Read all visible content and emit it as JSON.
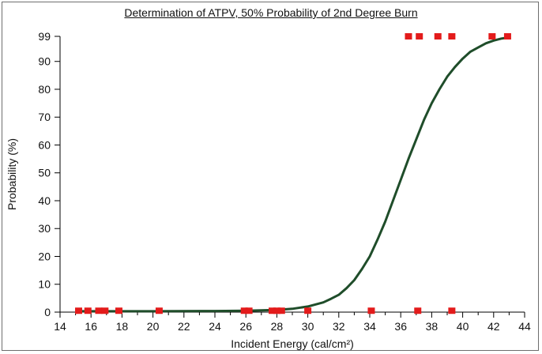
{
  "chart_data": {
    "type": "line",
    "title": "Determination of ATPV, 50% Probability of 2nd Degree Burn",
    "xlabel": "Incident Energy (cal/cm²)",
    "ylabel": "Probability (%)",
    "xlim": [
      14,
      44
    ],
    "ylim": [
      0,
      99
    ],
    "xticks": [
      "14",
      "16",
      "18",
      "20",
      "22",
      "24",
      "26",
      "28",
      "30",
      "32",
      "34",
      "36",
      "38",
      "40",
      "42",
      "44"
    ],
    "yticks": [
      "0",
      "10",
      "20",
      "30",
      "40",
      "50",
      "60",
      "70",
      "80",
      "90",
      "99"
    ],
    "grid": false,
    "colors": {
      "curve": "#1f4d2a",
      "points": "#e31b1b",
      "axis": "#000000"
    },
    "series": [
      {
        "type": "line",
        "x": [
          15.0,
          20.0,
          24.0,
          26.0,
          28.0,
          29.0,
          30.0,
          31.0,
          31.5,
          32.0,
          32.5,
          33.0,
          33.5,
          34.0,
          34.5,
          35.0,
          35.5,
          36.0,
          36.5,
          37.0,
          37.5,
          38.0,
          38.5,
          39.0,
          39.5,
          40.0,
          40.5,
          41.0,
          41.5,
          42.0,
          42.5,
          43.0
        ],
        "y": [
          0.3,
          0.3,
          0.4,
          0.5,
          0.8,
          1.2,
          2.0,
          3.5,
          4.8,
          6.2,
          8.6,
          11.5,
          15.5,
          20.0,
          26.0,
          32.5,
          40.0,
          47.5,
          55.0,
          62.0,
          69.0,
          75.0,
          80.0,
          84.5,
          88.0,
          91.0,
          93.5,
          95.0,
          96.5,
          97.5,
          98.2,
          98.6
        ]
      },
      {
        "type": "scatter",
        "x": [
          15.2,
          15.8,
          16.5,
          16.9,
          17.8,
          20.4,
          25.9,
          26.2,
          27.7,
          28.0,
          28.3,
          30.0,
          34.1,
          37.1,
          39.3
        ],
        "y": [
          0.5,
          0.5,
          0.5,
          0.5,
          0.5,
          0.5,
          0.5,
          0.5,
          0.5,
          0.5,
          0.5,
          0.5,
          0.5,
          0.5,
          0.5
        ]
      },
      {
        "type": "scatter",
        "x": [
          36.5,
          37.2,
          38.4,
          39.3,
          41.9,
          42.9
        ],
        "y": [
          99,
          99,
          99,
          99,
          99,
          99
        ]
      }
    ]
  }
}
